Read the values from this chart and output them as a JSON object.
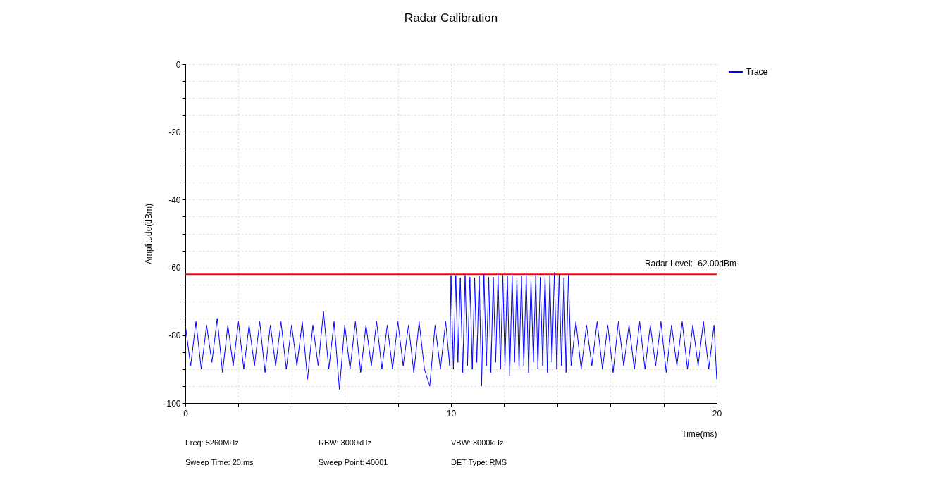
{
  "chart_data": {
    "type": "line",
    "title": "Radar Calibration",
    "xlabel": "Time(ms)",
    "ylabel": "Amplitude(dBm)",
    "xlim": [
      0,
      20
    ],
    "ylim": [
      -100,
      0
    ],
    "xticks": [
      0,
      {
        "value": 2,
        "label": null
      },
      {
        "value": 4,
        "label": null
      },
      {
        "value": 6,
        "label": null
      },
      {
        "value": 8,
        "label": null
      },
      10,
      {
        "value": 12,
        "label": null
      },
      {
        "value": 14,
        "label": null
      },
      {
        "value": 16,
        "label": null
      },
      {
        "value": 18,
        "label": null
      },
      20
    ],
    "yticks": [
      -100,
      {
        "value": -95,
        "label": null
      },
      {
        "value": -90,
        "label": null
      },
      {
        "value": -85,
        "label": null
      },
      -80,
      {
        "value": -75,
        "label": null
      },
      {
        "value": -70,
        "label": null
      },
      {
        "value": -65,
        "label": null
      },
      -60,
      {
        "value": -55,
        "label": null
      },
      {
        "value": -50,
        "label": null
      },
      {
        "value": -45,
        "label": null
      },
      -40,
      {
        "value": -35,
        "label": null
      },
      {
        "value": -30,
        "label": null
      },
      {
        "value": -25,
        "label": null
      },
      -20,
      {
        "value": -15,
        "label": null
      },
      {
        "value": -10,
        "label": null
      },
      {
        "value": -5,
        "label": null
      },
      0
    ],
    "grid": true,
    "legend": "top right",
    "line_style": "solid",
    "marker": "none",
    "series": [
      {
        "name": "Trace",
        "color": "#0000ff",
        "x": [
          0,
          0.2,
          0.4,
          0.6,
          0.8,
          1.0,
          1.2,
          1.4,
          1.6,
          1.8,
          2.0,
          2.2,
          2.4,
          2.6,
          2.8,
          3.0,
          3.2,
          3.4,
          3.6,
          3.8,
          4.0,
          4.2,
          4.4,
          4.6,
          4.8,
          5.0,
          5.2,
          5.4,
          5.6,
          5.8,
          6.0,
          6.2,
          6.4,
          6.6,
          6.8,
          7.0,
          7.2,
          7.4,
          7.6,
          7.8,
          8.0,
          8.2,
          8.4,
          8.6,
          8.8,
          9.0,
          9.2,
          9.4,
          9.6,
          9.8,
          9.95,
          10.0,
          10.09,
          10.18,
          10.26,
          10.35,
          10.44,
          10.53,
          10.62,
          10.71,
          10.8,
          10.89,
          10.97,
          11.06,
          11.15,
          11.24,
          11.33,
          11.42,
          11.5,
          11.59,
          11.68,
          11.77,
          11.86,
          11.95,
          12.03,
          12.12,
          12.21,
          12.3,
          12.39,
          12.48,
          12.56,
          12.65,
          12.74,
          12.83,
          12.92,
          13.01,
          13.1,
          13.19,
          13.27,
          13.36,
          13.45,
          13.54,
          13.63,
          13.72,
          13.8,
          13.89,
          13.98,
          14.07,
          14.16,
          14.25,
          14.33,
          14.42,
          14.52,
          14.7,
          14.9,
          15.1,
          15.3,
          15.5,
          15.7,
          15.9,
          16.1,
          16.3,
          16.5,
          16.7,
          16.9,
          17.1,
          17.3,
          17.5,
          17.7,
          17.9,
          18.1,
          18.3,
          18.5,
          18.7,
          18.9,
          19.1,
          19.3,
          19.5,
          19.7,
          19.9,
          20.0
        ],
        "values": [
          -77,
          -89,
          -76,
          -90,
          -77,
          -88,
          -75,
          -91,
          -77,
          -89,
          -76,
          -90,
          -77,
          -89,
          -76,
          -91,
          -77,
          -89,
          -76,
          -90,
          -77,
          -89,
          -76,
          -93,
          -77,
          -89,
          -73,
          -90,
          -76,
          -96,
          -77,
          -90,
          -76,
          -91,
          -77,
          -89,
          -76,
          -90,
          -77,
          -90,
          -76,
          -89,
          -77,
          -91,
          -76,
          -90,
          -95,
          -77,
          -90,
          -76,
          -89,
          -62.3,
          -90,
          -62.3,
          -88,
          -63,
          -91,
          -62.3,
          -89,
          -62.8,
          -90,
          -63,
          -88,
          -62.6,
          -95,
          -62,
          -89,
          -62.8,
          -91,
          -62.8,
          -88,
          -62.3,
          -90,
          -62.3,
          -89,
          -62.6,
          -92,
          -62.3,
          -88,
          -63,
          -90,
          -62.6,
          -89,
          -62.3,
          -91,
          -63.3,
          -88,
          -62.3,
          -90,
          -62.8,
          -89,
          -62.3,
          -91,
          -62.3,
          -88,
          -61.5,
          -90,
          -62,
          -89,
          -63,
          -91,
          -62.3,
          -89,
          -76,
          -90,
          -77,
          -89,
          -76,
          -90,
          -77,
          -91,
          -76,
          -89,
          -77,
          -90,
          -76,
          -90,
          -77,
          -89,
          -76,
          -91,
          -77,
          -89,
          -76,
          -90,
          -77,
          -89,
          -76,
          -90,
          -77,
          -93
        ]
      }
    ],
    "ref_lines": [
      {
        "axis": "y",
        "value": -62,
        "label": "Radar Level: -62.00dBm",
        "color": "#ff0000",
        "line_style": "solid"
      }
    ],
    "annotations": [
      "Freq: 5260MHz",
      "RBW: 3000kHz",
      "VBW: 3000kHz",
      "Sweep Time: 20.ms",
      "Sweep Point: 40001",
      "DET Type: RMS"
    ]
  }
}
